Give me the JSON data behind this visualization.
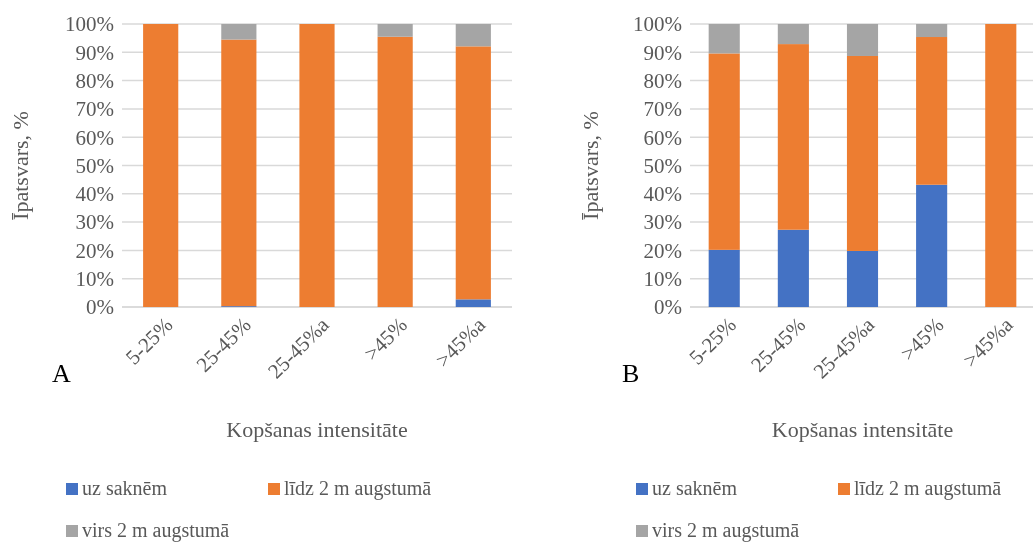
{
  "chart_data": [
    {
      "type": "bar",
      "stacked": true,
      "xlabel": "Kopšanas intensitāte",
      "ylabel": "Īpatsvars, %",
      "categories": [
        "5-25%",
        "25-45%",
        "25-45%a",
        ">45%",
        ">45%a"
      ],
      "ylim": [
        0,
        100
      ],
      "yticks": [
        {
          "value": 0,
          "label": "0%"
        },
        {
          "value": 10,
          "label": "10%"
        },
        {
          "value": 20,
          "label": "20%"
        },
        {
          "value": 30,
          "label": "30%"
        },
        {
          "value": 40,
          "label": "40%"
        },
        {
          "value": 50,
          "label": "50%"
        },
        {
          "value": 60,
          "label": "60%"
        },
        {
          "value": 70,
          "label": "70%"
        },
        {
          "value": 80,
          "label": "80%"
        },
        {
          "value": 90,
          "label": "90%"
        },
        {
          "value": 100,
          "label": "100%"
        }
      ],
      "grid": "y",
      "legend": "bottom",
      "annotations": [
        "A"
      ],
      "series": [
        {
          "name": "uz saknēm",
          "color": "#4472c4",
          "values": [
            0,
            0.3,
            0,
            0,
            2.7
          ]
        },
        {
          "name": "līdz 2 m augstumā",
          "color": "#ed7d31",
          "values": [
            100,
            94.2,
            100,
            95.5,
            89.4
          ]
        },
        {
          "name": "virs 2 m augstumā",
          "color": "#a5a5a5",
          "values": [
            0,
            5.5,
            0,
            4.5,
            7.9
          ]
        }
      ]
    },
    {
      "type": "bar",
      "stacked": true,
      "xlabel": "Kopšanas intensitāte",
      "ylabel": "Īpatsvars, %",
      "categories": [
        "5-25%",
        "25-45%",
        "25-45%a",
        ">45%",
        ">45%a"
      ],
      "ylim": [
        0,
        100
      ],
      "yticks": [
        {
          "value": 0,
          "label": "0%"
        },
        {
          "value": 10,
          "label": "10%"
        },
        {
          "value": 20,
          "label": "20%"
        },
        {
          "value": 30,
          "label": "30%"
        },
        {
          "value": 40,
          "label": "40%"
        },
        {
          "value": 50,
          "label": "50%"
        },
        {
          "value": 60,
          "label": "60%"
        },
        {
          "value": 70,
          "label": "70%"
        },
        {
          "value": 80,
          "label": "80%"
        },
        {
          "value": 90,
          "label": "90%"
        },
        {
          "value": 100,
          "label": "100%"
        }
      ],
      "grid": "y",
      "legend": "bottom",
      "annotations": [
        "B"
      ],
      "series": [
        {
          "name": "uz saknēm",
          "color": "#4472c4",
          "values": [
            20.2,
            27.3,
            19.8,
            43.2,
            0
          ]
        },
        {
          "name": "līdz 2 m augstumā",
          "color": "#ed7d31",
          "values": [
            69.4,
            65.6,
            68.9,
            52.2,
            100
          ]
        },
        {
          "name": "virs 2 m augstumā",
          "color": "#a5a5a5",
          "values": [
            10.4,
            7.1,
            11.3,
            4.6,
            0
          ]
        }
      ]
    }
  ]
}
